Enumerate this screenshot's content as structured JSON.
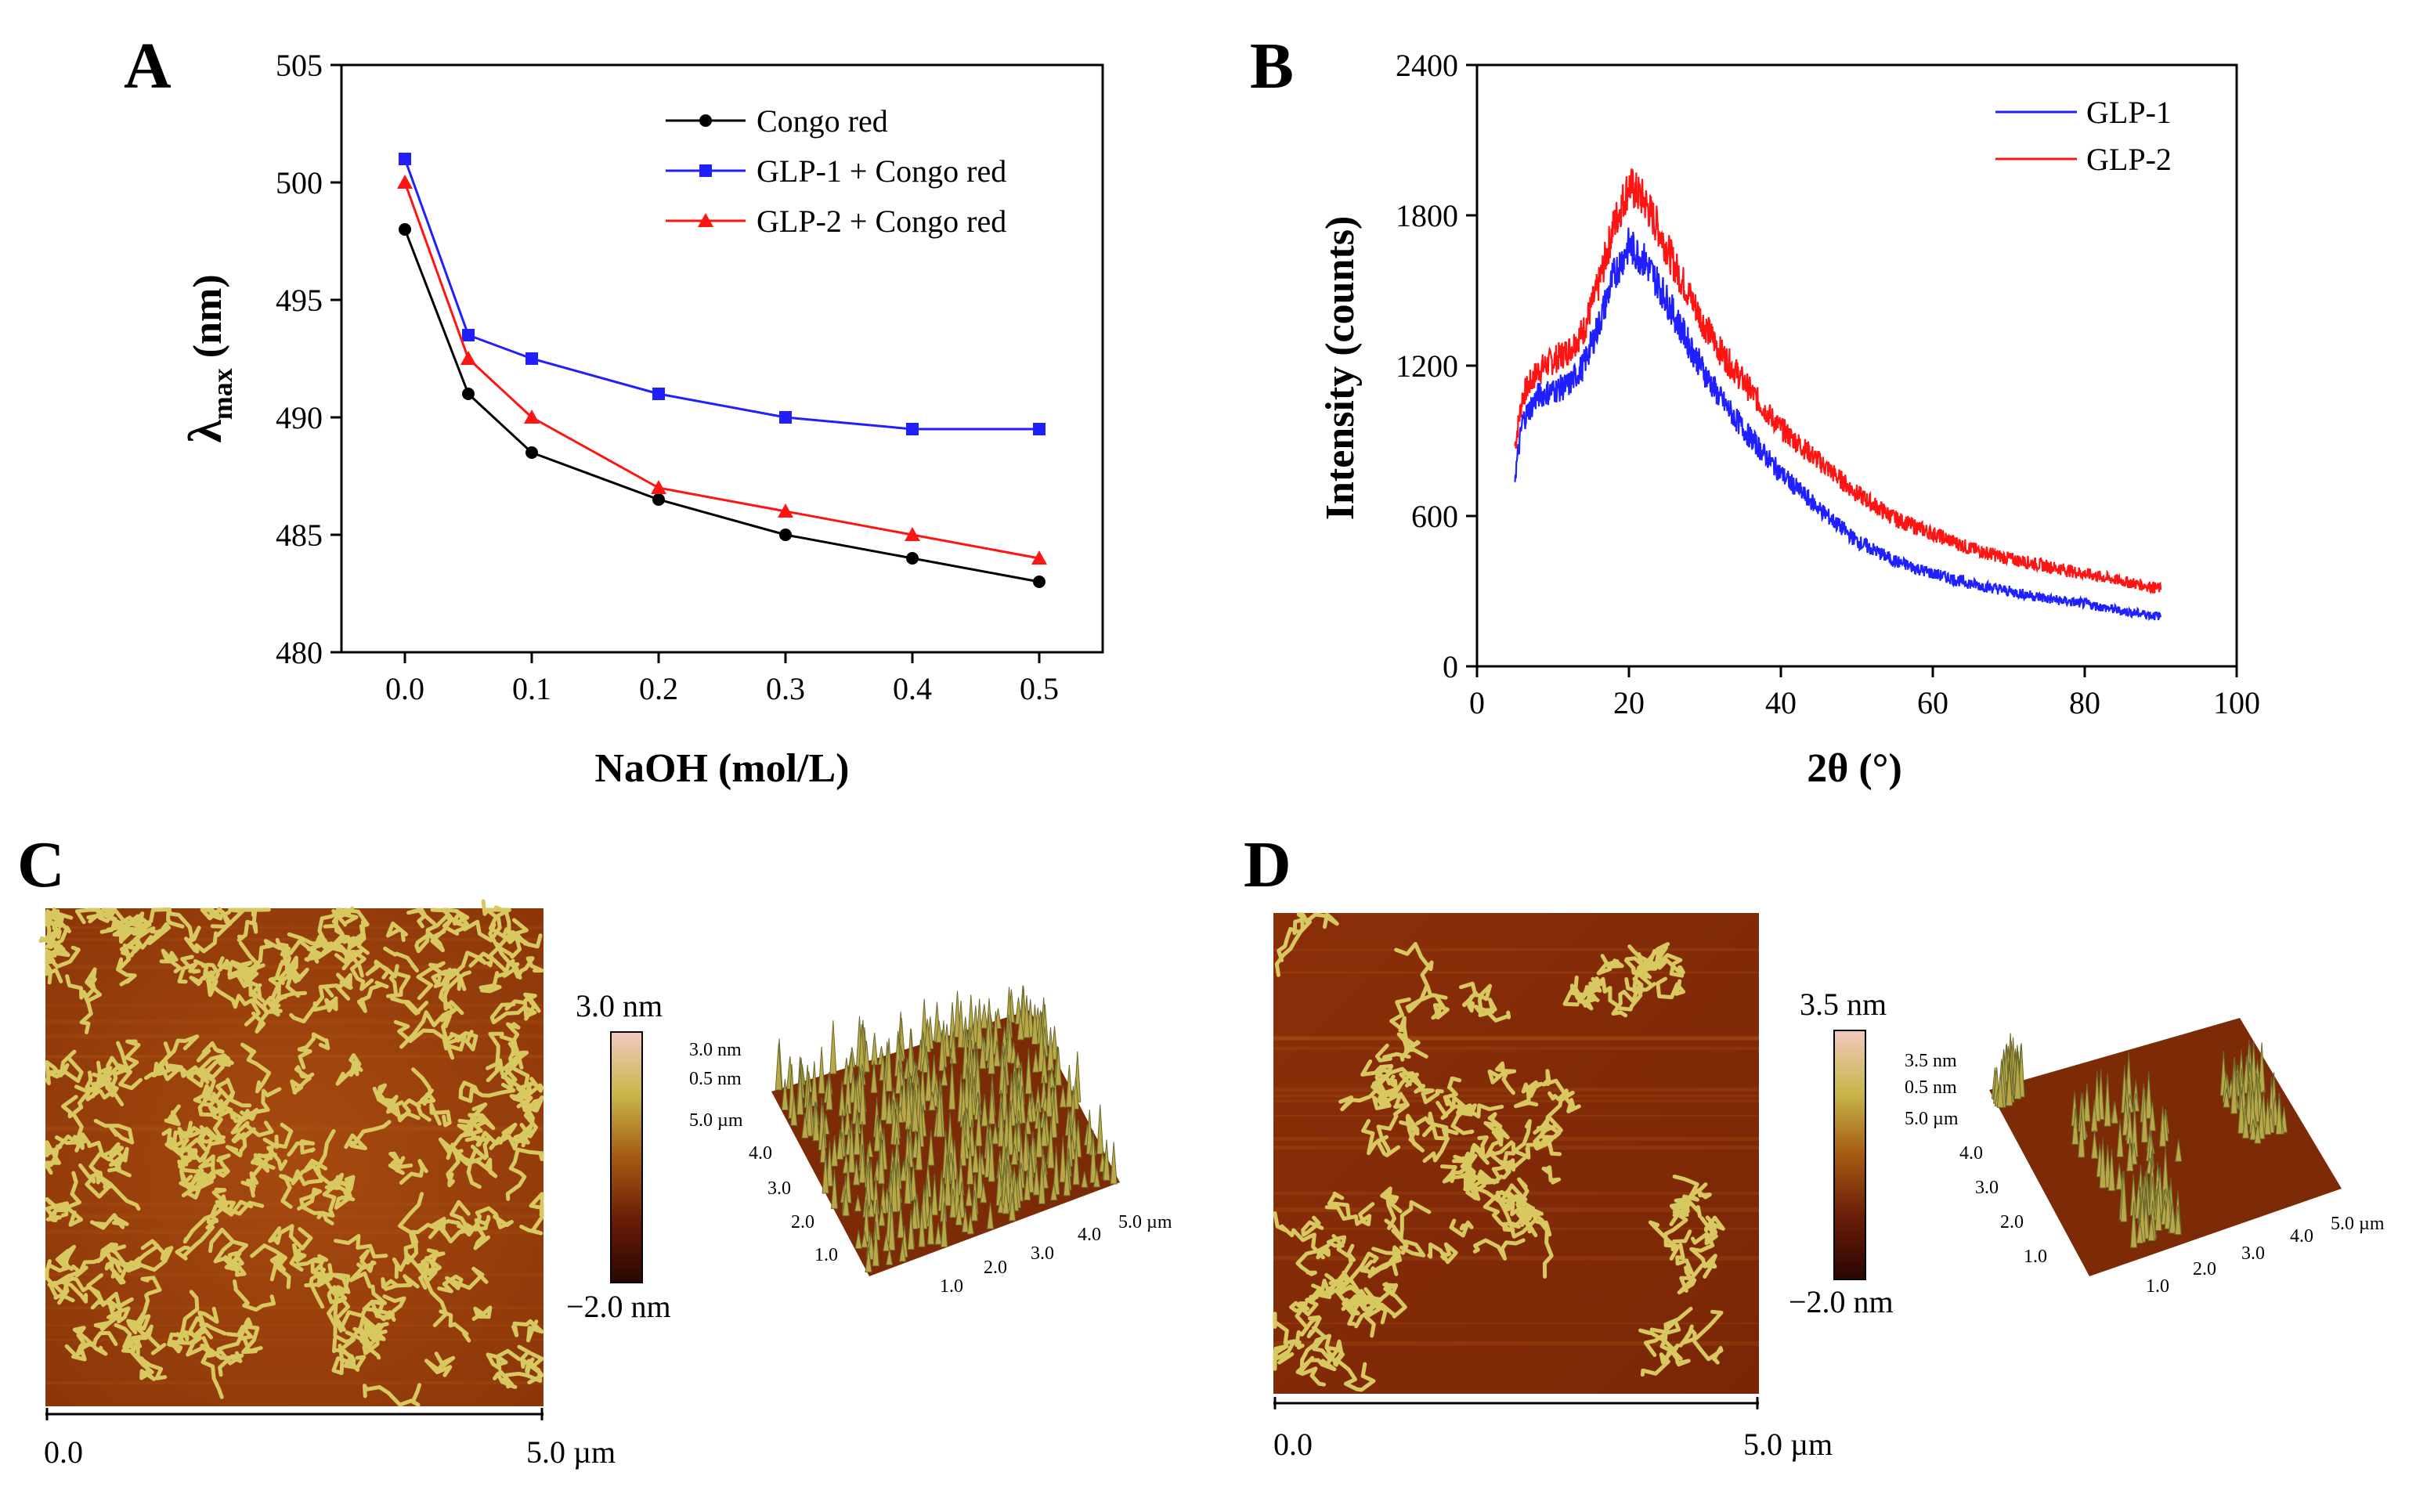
{
  "chart_data": [
    {
      "type": "line",
      "panel": "A",
      "xlabel": "NaOH (mol/L)",
      "ylabel_main": "λ",
      "ylabel_sub": "max",
      "ylabel_unit": " (nm)",
      "x": [
        0.0,
        0.05,
        0.1,
        0.2,
        0.3,
        0.4,
        0.5
      ],
      "xlim": [
        -0.05,
        0.55
      ],
      "ylim": [
        480,
        505
      ],
      "xticks": [
        "0.0",
        "0.1",
        "0.2",
        "0.3",
        "0.4",
        "0.5"
      ],
      "xtick_values": [
        0.0,
        0.1,
        0.2,
        0.3,
        0.4,
        0.5
      ],
      "yticks": [
        "480",
        "485",
        "490",
        "495",
        "500",
        "505"
      ],
      "ytick_values": [
        480,
        485,
        490,
        495,
        500,
        505
      ],
      "legend": "top-right",
      "series": [
        {
          "name": "Congo red",
          "color": "#000000",
          "marker": "circle",
          "values": [
            498,
            491,
            488.5,
            486.5,
            485,
            484,
            483
          ]
        },
        {
          "name": "GLP-1 + Congo red",
          "color": "#1f1fff",
          "marker": "square",
          "values": [
            501,
            493.5,
            492.5,
            491,
            490,
            489.5,
            489.5
          ]
        },
        {
          "name": "GLP-2 + Congo red",
          "color": "#ff1414",
          "marker": "triangle",
          "values": [
            500,
            492.5,
            490,
            487,
            486,
            485,
            484
          ]
        }
      ]
    },
    {
      "type": "line",
      "panel": "B",
      "xlabel": "2θ (°)",
      "ylabel": "Intensity (counts)",
      "xlim": [
        0,
        100
      ],
      "ylim": [
        0,
        2400
      ],
      "xticks": [
        "0",
        "20",
        "40",
        "60",
        "80",
        "100"
      ],
      "xtick_values": [
        0,
        20,
        40,
        60,
        80,
        100
      ],
      "yticks": [
        "0",
        "600",
        "1200",
        "1800",
        "2400"
      ],
      "ytick_values": [
        0,
        600,
        1200,
        1800,
        2400
      ],
      "legend": "top-right",
      "series": [
        {
          "name": "GLP-1",
          "color": "#1f1fff",
          "x": [
            5,
            6,
            8,
            10,
            12,
            14,
            16,
            18,
            20,
            22,
            24,
            26,
            28,
            30,
            32,
            35,
            38,
            40,
            45,
            50,
            55,
            60,
            65,
            70,
            75,
            80,
            85,
            90
          ],
          "values": [
            760,
            980,
            1080,
            1100,
            1120,
            1200,
            1360,
            1560,
            1680,
            1620,
            1520,
            1400,
            1280,
            1170,
            1070,
            950,
            840,
            770,
            630,
            500,
            420,
            370,
            330,
            300,
            270,
            250,
            220,
            200
          ]
        },
        {
          "name": "GLP-2",
          "color": "#ff1414",
          "x": [
            5,
            6,
            8,
            10,
            12,
            14,
            16,
            18,
            20,
            22,
            24,
            26,
            28,
            30,
            32,
            35,
            38,
            40,
            45,
            50,
            55,
            60,
            65,
            70,
            75,
            80,
            85,
            90
          ],
          "values": [
            880,
            1080,
            1180,
            1220,
            1260,
            1340,
            1520,
            1760,
            1920,
            1860,
            1740,
            1600,
            1480,
            1360,
            1260,
            1140,
            1020,
            950,
            820,
            690,
            590,
            530,
            470,
            430,
            400,
            370,
            340,
            310
          ]
        }
      ]
    }
  ],
  "panels": {
    "A": "A",
    "B": "B",
    "C": "C",
    "D": "D"
  },
  "afm": {
    "C": {
      "scale_max": "3.0 nm",
      "scale_min": "−2.0 nm",
      "scalebar_start": "0.0",
      "scalebar_end": "5.0 µm",
      "view3d_labels": [
        "3.0 nm",
        "0.5 nm",
        "5.0 µm",
        "4.0",
        "3.0",
        "2.0",
        "1.0"
      ],
      "view3d_xlabels": [
        "1.0",
        "2.0",
        "3.0",
        "4.0",
        "5.0 µm"
      ]
    },
    "D": {
      "scale_max": "3.5 nm",
      "scale_min": "−2.0 nm",
      "scalebar_start": "0.0",
      "scalebar_end": "5.0 µm",
      "view3d_labels": [
        "3.5 nm",
        "0.5 nm",
        "5.0 µm",
        "4.0",
        "3.0",
        "2.0",
        "1.0"
      ],
      "view3d_xlabels": [
        "1.0",
        "2.0",
        "3.0",
        "4.0",
        "5.0 µm"
      ]
    }
  }
}
